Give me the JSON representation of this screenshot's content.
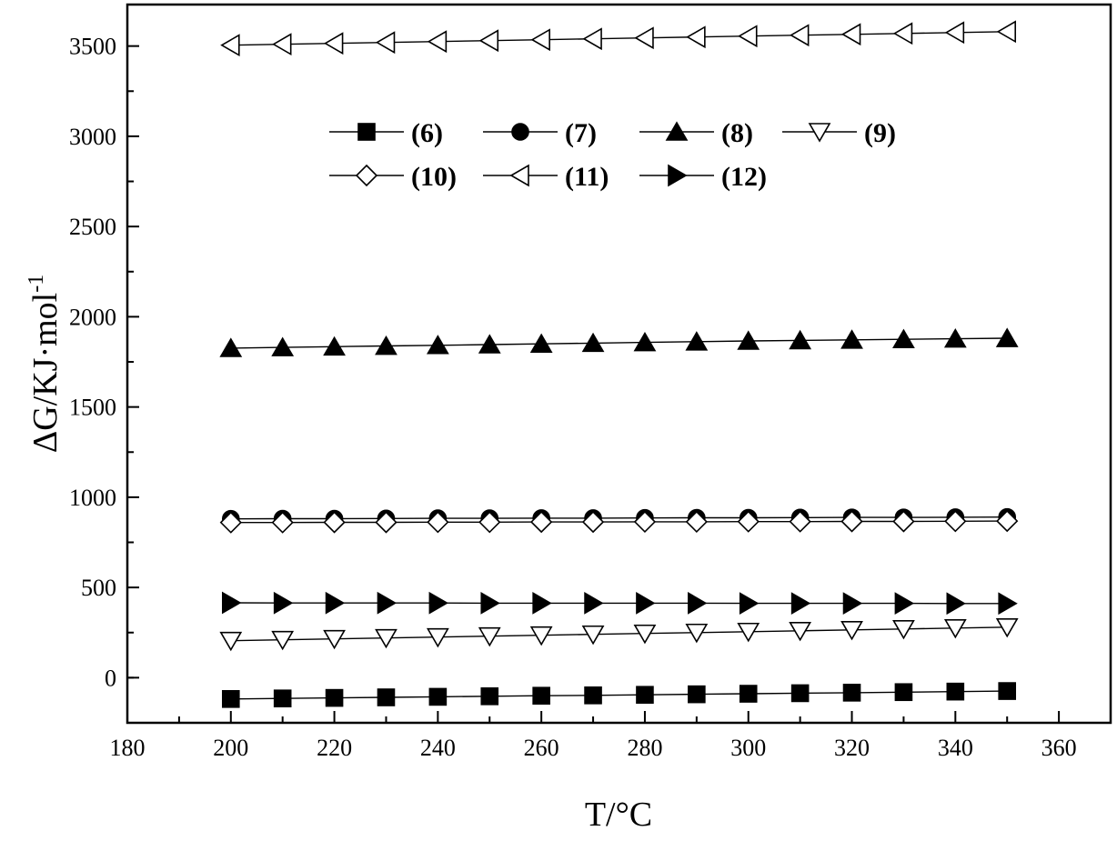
{
  "chart_data": {
    "type": "line",
    "title": "",
    "xlabel": "T/°C",
    "ylabel": "ΔG/KJ·mol",
    "ylabel_sup": "-1",
    "xlim": [
      180,
      370
    ],
    "ylim": [
      -250,
      3730
    ],
    "xticks": [
      180,
      200,
      220,
      240,
      260,
      280,
      300,
      320,
      340,
      360
    ],
    "yticks": [
      0,
      500,
      1000,
      1500,
      2000,
      2500,
      3000,
      3500
    ],
    "grid": false,
    "legend_position": "top-center",
    "x": [
      200,
      210,
      220,
      230,
      240,
      250,
      260,
      270,
      280,
      290,
      300,
      310,
      320,
      330,
      340,
      350
    ],
    "series": [
      {
        "name": "(6)",
        "marker": "square-filled",
        "values": [
          -118,
          -115,
          -112,
          -109,
          -106,
          -103,
          -100,
          -98,
          -95,
          -92,
          -89,
          -86,
          -83,
          -80,
          -77,
          -74
        ]
      },
      {
        "name": "(7)",
        "marker": "circle-filled",
        "values": [
          880,
          881,
          881,
          882,
          883,
          883,
          884,
          884,
          885,
          886,
          886,
          887,
          888,
          888,
          889,
          890
        ]
      },
      {
        "name": "(8)",
        "marker": "triangle-up-filled",
        "values": [
          1826,
          1830,
          1834,
          1838,
          1842,
          1846,
          1850,
          1854,
          1858,
          1862,
          1866,
          1869,
          1872,
          1875,
          1878,
          1881
        ]
      },
      {
        "name": "(9)",
        "marker": "triangle-down-open",
        "values": [
          205,
          210,
          215,
          220,
          225,
          230,
          235,
          240,
          245,
          250,
          255,
          260,
          265,
          270,
          275,
          280
        ]
      },
      {
        "name": "(10)",
        "marker": "diamond-open",
        "values": [
          860,
          860,
          861,
          861,
          862,
          862,
          863,
          863,
          864,
          864,
          865,
          865,
          866,
          866,
          867,
          868
        ]
      },
      {
        "name": "(11)",
        "marker": "triangle-left-open",
        "values": [
          3505,
          3510,
          3515,
          3520,
          3525,
          3530,
          3535,
          3540,
          3545,
          3550,
          3555,
          3560,
          3565,
          3570,
          3575,
          3580
        ]
      },
      {
        "name": "(12)",
        "marker": "triangle-right-filled",
        "values": [
          415,
          414,
          414,
          414,
          414,
          413,
          413,
          413,
          413,
          413,
          412,
          412,
          412,
          412,
          411,
          411
        ]
      }
    ]
  }
}
